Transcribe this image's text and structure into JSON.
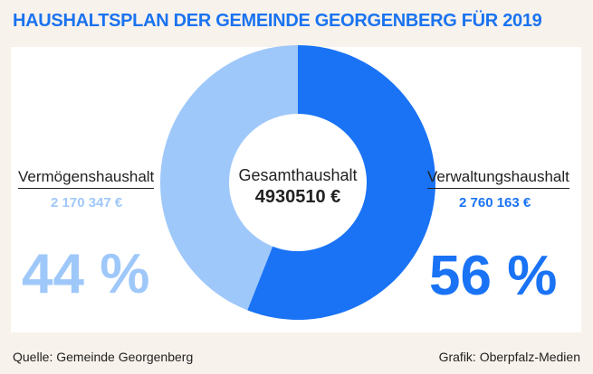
{
  "title": "HAUSHALTSPLAN DER GEMEINDE GEORGENBERG FÜR 2019",
  "chart_data": {
    "type": "pie",
    "title": "HAUSHALTSPLAN DER GEMEINDE GEORGENBERG FÜR 2019",
    "center_label": "Gesamthaushalt",
    "center_value": "4930510 €",
    "total": 4930510,
    "series": [
      {
        "name": "Verwaltungshaushalt",
        "value": 2760163,
        "value_label": "2 760 163 €",
        "percent": 56,
        "percent_label": "56 %",
        "color": "#1a73f5"
      },
      {
        "name": "Vermögenshaushalt",
        "value": 2170347,
        "value_label": "2 170 347 €",
        "percent": 44,
        "percent_label": "44 %",
        "color": "#9fc8fa"
      }
    ]
  },
  "footer": {
    "source": "Quelle: Gemeinde Georgenberg",
    "credit": "Grafik: Oberpfalz-Medien"
  }
}
